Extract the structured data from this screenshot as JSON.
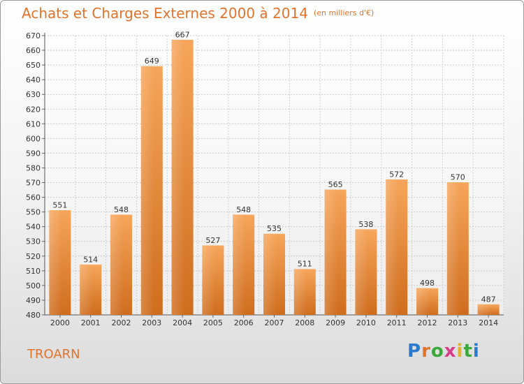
{
  "header": {
    "title": "Achats et Charges Externes 2000 à 2014",
    "subtitle": "(en milliers d'€)"
  },
  "footer": {
    "city": "TROARN",
    "logo_letters": [
      "P",
      "r",
      "o",
      "x",
      "i",
      "t",
      "i"
    ],
    "logo_colors": [
      "#2a7bd0",
      "#e2732b",
      "#3aa83a",
      "#d83a8c",
      "#e2b22b",
      "#3aa83a",
      "#2a7bd0"
    ]
  },
  "chart_data": {
    "type": "bar",
    "categories": [
      "2000",
      "2001",
      "2002",
      "2003",
      "2004",
      "2005",
      "2006",
      "2007",
      "2008",
      "2009",
      "2010",
      "2011",
      "2012",
      "2013",
      "2014"
    ],
    "values": [
      551,
      514,
      548,
      649,
      667,
      527,
      548,
      535,
      511,
      565,
      538,
      572,
      498,
      570,
      487
    ],
    "title": "Achats et Charges Externes 2000 à 2014",
    "ylim": [
      480,
      670
    ],
    "ytick_step": 10,
    "grid": true,
    "bar_color": "#ee8c3a"
  }
}
